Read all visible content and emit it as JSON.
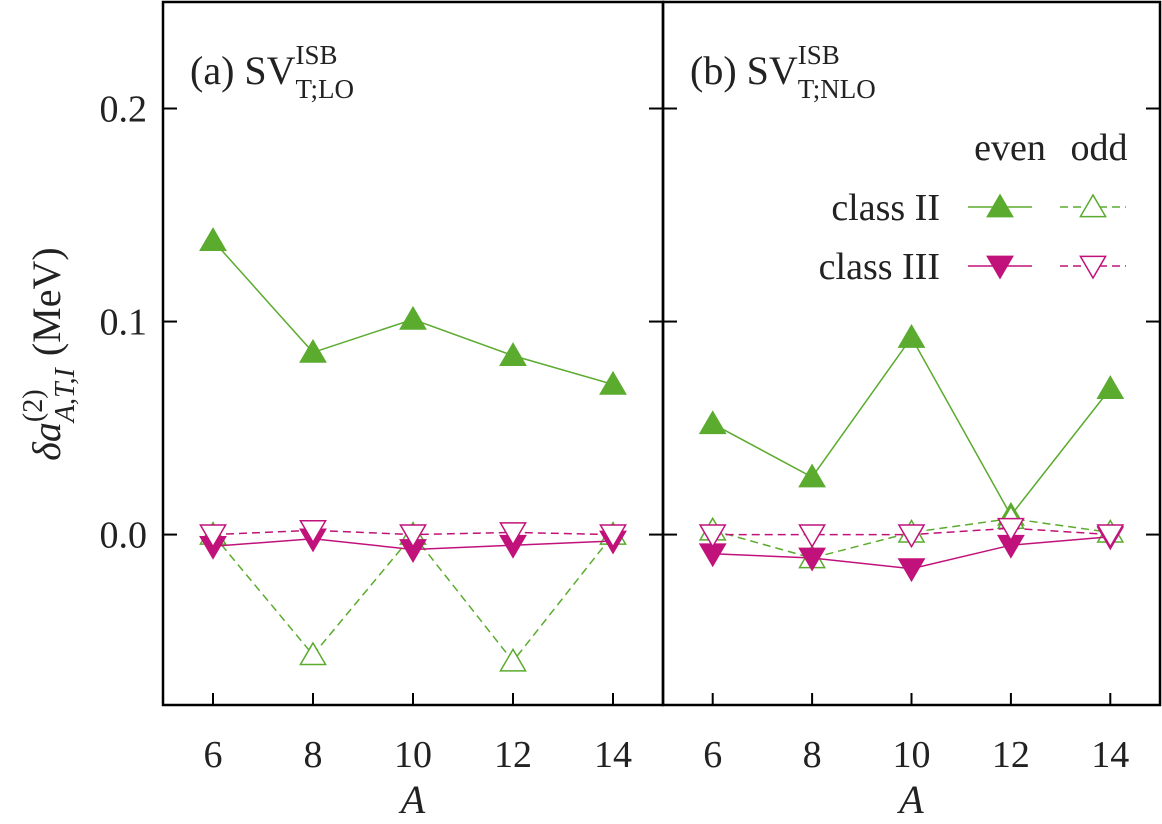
{
  "chart_data": [
    {
      "type": "line",
      "title": "(a) SV",
      "title_sup": "ISB",
      "title_sub": "T;LO",
      "ylabel": "δa",
      "ylabel_sup": "(2)",
      "ylabel_sub": "A,T,I",
      "ylabel_unit": "(MeV)",
      "xlabel": "A",
      "x": [
        6,
        8,
        10,
        12,
        14
      ],
      "xlim": [
        5,
        15
      ],
      "xticks": [
        6,
        8,
        10,
        12,
        14
      ],
      "ylim": [
        -0.08,
        0.25
      ],
      "yticks": [
        {
          "value": 0,
          "label": "0.0"
        },
        0.1,
        0.2
      ],
      "ytick_labels": true,
      "series": [
        {
          "name": "class II",
          "color": "#5aab2e",
          "marker": "triangle-up",
          "even": [
            0.138,
            0.0855,
            0.101,
            0.084,
            0.0705
          ],
          "odd": [
            0.0,
            -0.0565,
            0.0,
            -0.0595,
            0.0
          ]
        },
        {
          "name": "class III",
          "color": "#c0127a",
          "marker": "triangle-down",
          "even": [
            -0.0055,
            -0.002,
            -0.007,
            -0.005,
            -0.003
          ],
          "odd": [
            0.0,
            0.002,
            0.0,
            0.001,
            0.0
          ]
        }
      ]
    },
    {
      "type": "line",
      "title": "(b) SV",
      "title_sup": "ISB",
      "title_sub": "T;NLO",
      "xlabel": "A",
      "x": [
        6,
        8,
        10,
        12,
        14
      ],
      "xlim": [
        5,
        15
      ],
      "xticks": [
        6,
        8,
        10,
        12,
        14
      ],
      "ylim": [
        -0.08,
        0.25
      ],
      "yticks": [
        0,
        0.1,
        0.2
      ],
      "ytick_labels": false,
      "legend_columns": [
        "even",
        "odd"
      ],
      "series": [
        {
          "name": "class II",
          "color": "#5aab2e",
          "marker": "triangle-up",
          "even": [
            0.052,
            0.027,
            0.0925,
            0.009,
            0.0685
          ],
          "odd": [
            0.002,
            -0.011,
            0.001,
            0.0075,
            0.001
          ]
        },
        {
          "name": "class III",
          "color": "#c0127a",
          "marker": "triangle-down",
          "even": [
            -0.009,
            -0.011,
            -0.016,
            -0.005,
            -0.001
          ],
          "odd": [
            0.0,
            0.0,
            0.0,
            0.003,
            0.0
          ]
        }
      ]
    }
  ]
}
